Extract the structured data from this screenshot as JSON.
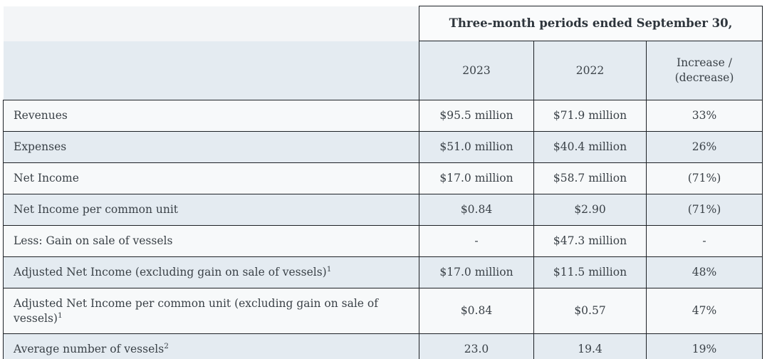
{
  "table": {
    "span_header": "Three-month periods ended September 30,",
    "columns": {
      "col_2023": "2023",
      "col_2022": "2022",
      "col_change": "Increase /\n(decrease)"
    },
    "rows": [
      {
        "label": "Revenues",
        "footnote": "",
        "y2023": "$95.5 million",
        "y2022": "$71.9 million",
        "change": "33%"
      },
      {
        "label": "Expenses",
        "footnote": "",
        "y2023": "$51.0 million",
        "y2022": "$40.4 million",
        "change": "26%"
      },
      {
        "label": "Net Income",
        "footnote": "",
        "y2023": "$17.0 million",
        "y2022": "$58.7 million",
        "change": "(71%)"
      },
      {
        "label": "Net Income per common unit",
        "footnote": "",
        "y2023": "$0.84",
        "y2022": "$2.90",
        "change": "(71%)"
      },
      {
        "label": "Less: Gain on sale of vessels",
        "footnote": "",
        "y2023": "-",
        "y2022": "$47.3 million",
        "change": "-"
      },
      {
        "label": "Adjusted Net Income (excluding gain on sale of vessels)",
        "footnote": "1",
        "y2023": "$17.0 million",
        "y2022": "$11.5 million",
        "change": "48%"
      },
      {
        "label": "Adjusted Net Income per common unit (excluding gain on sale of vessels)",
        "footnote": "1",
        "y2023": "$0.84",
        "y2022": "$0.57",
        "change": "47%"
      },
      {
        "label": "Average number of vessels",
        "footnote": "2",
        "y2023": "23.0",
        "y2022": "19.4",
        "change": "19%"
      }
    ]
  },
  "colors": {
    "border": "#1d2126",
    "text": "#3a4147",
    "text_strong": "#2e353c",
    "row_light": "#f7f9fa",
    "row_blue": "#e4ebf1",
    "header_left_bg": "#f3f5f7",
    "span_header_bg": "#fafbfc",
    "page_bg": "#ffffff"
  }
}
